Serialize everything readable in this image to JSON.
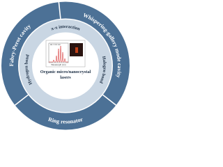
{
  "outer_ring": {
    "segments": [
      "Fabry-Perot cavity",
      "Whispering-gallery mode cavity",
      "Ring resonator"
    ]
  },
  "inner_ring": {
    "segments": [
      "π-π interaction",
      "Halogen bond",
      "Hydrogen bond"
    ]
  },
  "center": {
    "label_lines": [
      "Organic micro/nanocrystal",
      "lasers"
    ],
    "inset": {
      "annotation": "Δλ = 0.4 nm",
      "x_label": "Wavelength (nm)"
    }
  }
}
